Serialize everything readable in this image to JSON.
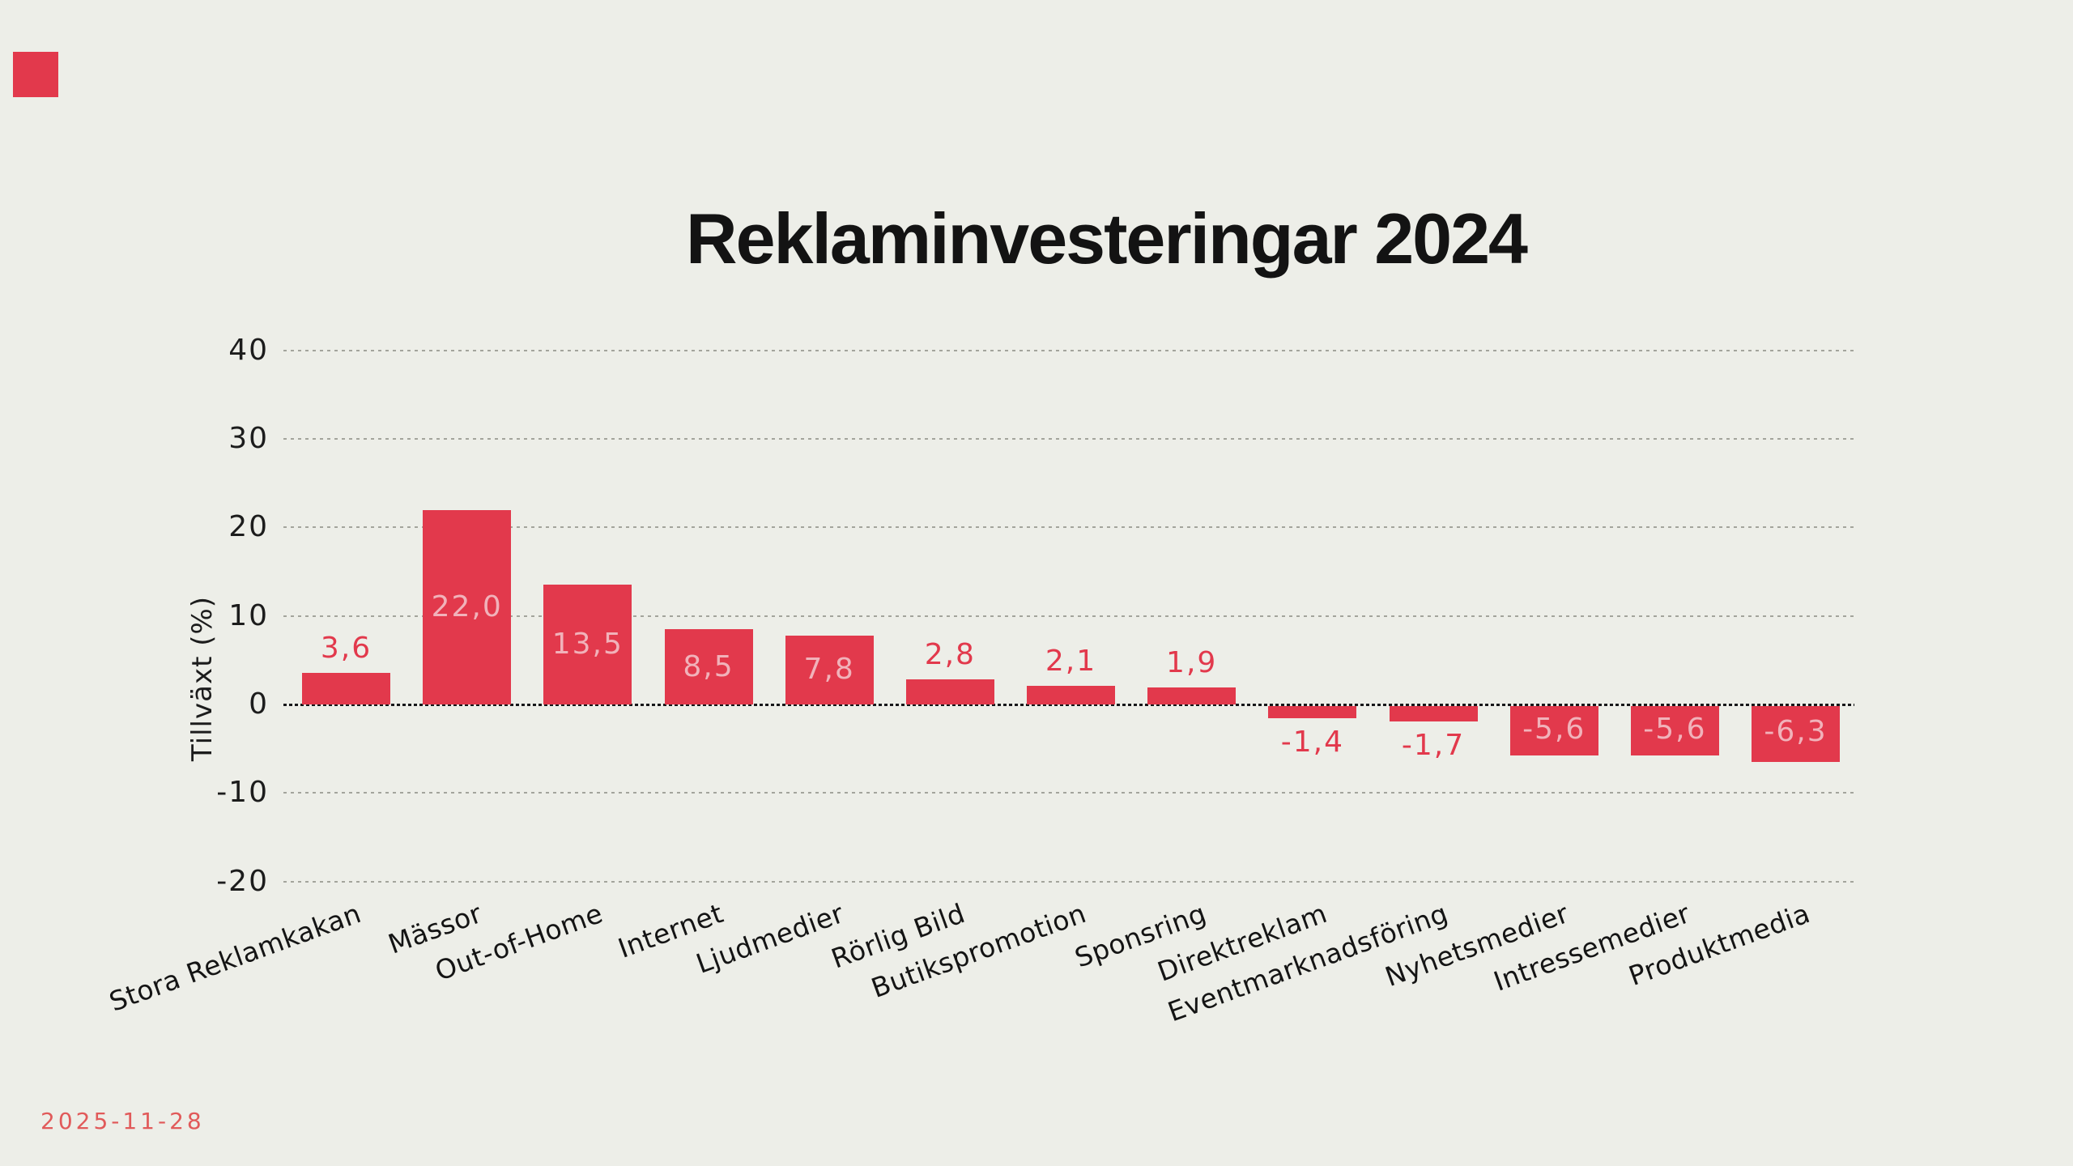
{
  "page": {
    "background_color": "#EDEEE8",
    "date": "2025-11-28",
    "date_color": "#E15A5A"
  },
  "logo": {
    "color": "#E2394C"
  },
  "chart_data": {
    "type": "bar",
    "title": "Reklaminvesteringar 2024",
    "xlabel": "",
    "ylabel": "Tillväxt (%)",
    "categories": [
      "Stora Reklamkakan",
      "Mässor",
      "Out-of-Home",
      "Internet",
      "Ljudmedier",
      "Rörlig Bild",
      "Butikspromotion",
      "Sponsring",
      "Direktreklam",
      "Eventmarknadsföring",
      "Nyhetsmedier",
      "Intressemedier",
      "Produktmedia"
    ],
    "values": [
      3.6,
      22.0,
      13.5,
      8.5,
      7.8,
      2.8,
      2.1,
      1.9,
      -1.4,
      -1.7,
      -5.6,
      -5.6,
      -6.3
    ],
    "value_labels": [
      "3,6",
      "22,0",
      "13,5",
      "8,5",
      "7,8",
      "2,8",
      "2,1",
      "1,9",
      "-1,4",
      "-1,7",
      "-5,6",
      "-5,6",
      "-6,3"
    ],
    "yticks": [
      40,
      30,
      20,
      10,
      0,
      -10,
      -20
    ],
    "ytick_labels": [
      "40",
      "30",
      "20",
      "10",
      "0",
      "-10",
      "-20"
    ],
    "ylim": [
      -20,
      40
    ],
    "grid": "horizontal-dotted",
    "legend_position": "none",
    "bar_color": "#E2394C",
    "value_label_inside_color": "#F1B2BA",
    "value_label_outside_color": "#E2394C",
    "inside_label_threshold": 5,
    "category_label_rotation_deg": -20
  }
}
